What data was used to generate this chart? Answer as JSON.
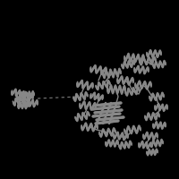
{
  "background_color": "#000000",
  "ribbon_color": "#888888",
  "ribbon_edge_color": "#555555",
  "dashed_line_color": "#888888",
  "figsize": [
    2.0,
    2.0
  ],
  "dpi": 100
}
